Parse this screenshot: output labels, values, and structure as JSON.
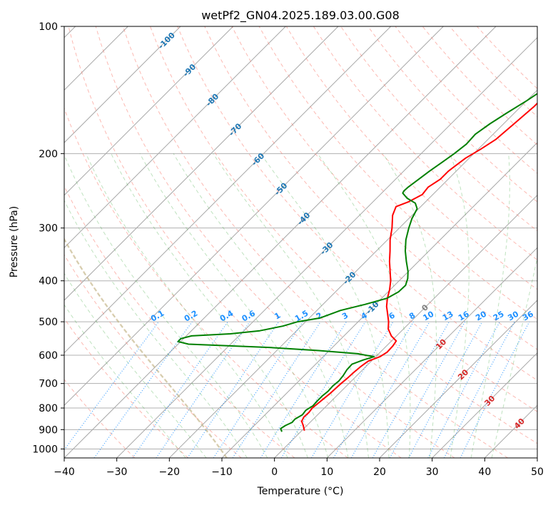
{
  "chart_data": {
    "type": "line",
    "title": "wetPf2_GN04.2025.189.03.00.G08",
    "xlabel": "Temperature (°C)",
    "ylabel": "Pressure (hPa)",
    "xlim": [
      -40,
      50
    ],
    "ylim": [
      1050,
      100
    ],
    "y_scale": "log",
    "grid": true,
    "x_ticks": [
      -40,
      -30,
      -20,
      -10,
      0,
      10,
      20,
      30,
      40,
      50
    ],
    "x_tick_labels": [
      "−40",
      "−30",
      "−20",
      "−10",
      "0",
      "10",
      "20",
      "30",
      "40",
      "50"
    ],
    "y_ticks": [
      1000,
      900,
      800,
      700,
      600,
      500,
      400,
      300,
      200,
      100
    ],
    "y_tick_labels": [
      "1000",
      "900",
      "800",
      "700",
      "600",
      "500",
      "400",
      "300",
      "200",
      "100"
    ],
    "series": [
      {
        "color": "#ff0000",
        "points": [
          [
            905,
            0.5
          ],
          [
            880,
            -0.7
          ],
          [
            860,
            -1.8
          ],
          [
            840,
            -2.2
          ],
          [
            820,
            -2.1
          ],
          [
            800,
            -2.3
          ],
          [
            780,
            -2.1
          ],
          [
            760,
            -1.9
          ],
          [
            740,
            -1.7
          ],
          [
            720,
            -1.6
          ],
          [
            700,
            -1.5
          ],
          [
            680,
            -1.3
          ],
          [
            660,
            -1.2
          ],
          [
            640,
            -1.0
          ],
          [
            620,
            -0.6
          ],
          [
            605,
            0.8
          ],
          [
            590,
            1.3
          ],
          [
            570,
            1.2
          ],
          [
            555,
            0.9
          ],
          [
            540,
            -1.0
          ],
          [
            520,
            -2.9
          ],
          [
            500,
            -4.2
          ],
          [
            480,
            -5.8
          ],
          [
            460,
            -7.5
          ],
          [
            440,
            -8.9
          ],
          [
            420,
            -10.1
          ],
          [
            400,
            -11.6
          ],
          [
            380,
            -13.5
          ],
          [
            360,
            -15.5
          ],
          [
            340,
            -17.4
          ],
          [
            320,
            -19.5
          ],
          [
            300,
            -21.4
          ],
          [
            280,
            -23.7
          ],
          [
            267,
            -24.7
          ],
          [
            260,
            -23.2
          ],
          [
            250,
            -22.0
          ],
          [
            240,
            -22.3
          ],
          [
            230,
            -21.5
          ],
          [
            220,
            -21.5
          ],
          [
            205,
            -20.7
          ],
          [
            195,
            -19.5
          ],
          [
            185,
            -18.5
          ],
          [
            170,
            -18.0
          ],
          [
            155,
            -17.5
          ],
          [
            140,
            -17.5
          ],
          [
            128,
            -17.4
          ],
          [
            118,
            -16.8
          ],
          [
            108,
            -16.5
          ],
          [
            100,
            -16.0
          ]
        ]
      },
      {
        "color": "#008000",
        "points": [
          [
            910,
            -3.6
          ],
          [
            895,
            -4.4
          ],
          [
            880,
            -4.1
          ],
          [
            865,
            -3.4
          ],
          [
            850,
            -3.5
          ],
          [
            830,
            -2.9
          ],
          [
            810,
            -3.1
          ],
          [
            790,
            -2.6
          ],
          [
            770,
            -2.7
          ],
          [
            750,
            -2.7
          ],
          [
            730,
            -2.5
          ],
          [
            710,
            -2.6
          ],
          [
            690,
            -2.4
          ],
          [
            670,
            -2.6
          ],
          [
            650,
            -3.0
          ],
          [
            630,
            -3.1
          ],
          [
            615,
            -1.7
          ],
          [
            605,
            -0.3
          ],
          [
            595,
            -4.0
          ],
          [
            585,
            -12.0
          ],
          [
            575,
            -22.0
          ],
          [
            565,
            -38.0
          ],
          [
            557,
            -40.5
          ],
          [
            548,
            -40.5
          ],
          [
            540,
            -39.0
          ],
          [
            534,
            -32.0
          ],
          [
            525,
            -27.0
          ],
          [
            512,
            -23.5
          ],
          [
            500,
            -21.5
          ],
          [
            490,
            -18.0
          ],
          [
            470,
            -15.5
          ],
          [
            455,
            -12.0
          ],
          [
            440,
            -9.0
          ],
          [
            425,
            -8.0
          ],
          [
            410,
            -7.9
          ],
          [
            395,
            -8.8
          ],
          [
            380,
            -10.1
          ],
          [
            360,
            -12.3
          ],
          [
            340,
            -14.5
          ],
          [
            320,
            -16.5
          ],
          [
            300,
            -18.2
          ],
          [
            285,
            -19.4
          ],
          [
            270,
            -20.3
          ],
          [
            262,
            -21.7
          ],
          [
            255,
            -24.2
          ],
          [
            248,
            -26.0
          ],
          [
            245,
            -26.2
          ],
          [
            240,
            -26.1
          ],
          [
            230,
            -25.6
          ],
          [
            220,
            -25.1
          ],
          [
            210,
            -24.4
          ],
          [
            200,
            -23.7
          ],
          [
            190,
            -23.2
          ],
          [
            180,
            -23.4
          ],
          [
            170,
            -22.6
          ],
          [
            160,
            -21.4
          ],
          [
            150,
            -20.0
          ],
          [
            140,
            -18.8
          ],
          [
            130,
            -17.2
          ],
          [
            120,
            -15.6
          ],
          [
            110,
            -13.5
          ],
          [
            105,
            -11.0
          ],
          [
            100,
            -9.0
          ]
        ]
      }
    ],
    "dry_adiabats_theta_c": [
      -30,
      -20,
      -10,
      0,
      10,
      20,
      30,
      40,
      50,
      60,
      70,
      80,
      90,
      100,
      110,
      120,
      130,
      140,
      150,
      160,
      170
    ],
    "moist_adiabats_c": [
      -20,
      -16,
      -12,
      -8,
      -4,
      0,
      4,
      8,
      12,
      16,
      20,
      24,
      28,
      32,
      36,
      40
    ],
    "mixing_ratio_lines_g_kg": [
      0.1,
      0.2,
      0.4,
      0.6,
      1,
      1.5,
      2,
      3,
      4,
      6,
      8,
      10,
      13,
      16,
      20,
      25,
      30,
      36
    ],
    "mixing_ratio_labels": [
      "0.1",
      "0.2",
      "0.4",
      "0.6",
      "1",
      "1.5",
      "2",
      "3",
      "4",
      "6",
      "8",
      "10",
      "13",
      "16",
      "20",
      "25",
      "30",
      "36"
    ],
    "isotherm_labels": [
      {
        "text": "-100",
        "value": -100
      },
      {
        "text": "-90",
        "value": -90
      },
      {
        "text": "-80",
        "value": -80
      },
      {
        "text": "-70",
        "value": -70
      },
      {
        "text": "-60",
        "value": -60
      },
      {
        "text": "-50",
        "value": -50
      },
      {
        "text": "-40",
        "value": -40
      },
      {
        "text": "-30",
        "value": -30
      },
      {
        "text": "-20",
        "value": -20
      },
      {
        "text": "-10",
        "value": -10
      },
      {
        "text": "0",
        "value": 0
      },
      {
        "text": "10",
        "value": 10
      },
      {
        "text": "20",
        "value": 20
      },
      {
        "text": "30",
        "value": 30
      },
      {
        "text": "40",
        "value": 40
      }
    ],
    "colors": {
      "temperature": "#ff0000",
      "dewpoint": "#008000",
      "dry_adiabat": "#fa8072",
      "moist_adiabat": "#2ca02c",
      "mixing_ratio": "#1e90ff",
      "isotherm": "#808080",
      "cold_label": "#1f77b4",
      "zero_label": "#808080",
      "warm_label": "#d62728",
      "dendritic": "#d2b48c"
    }
  }
}
